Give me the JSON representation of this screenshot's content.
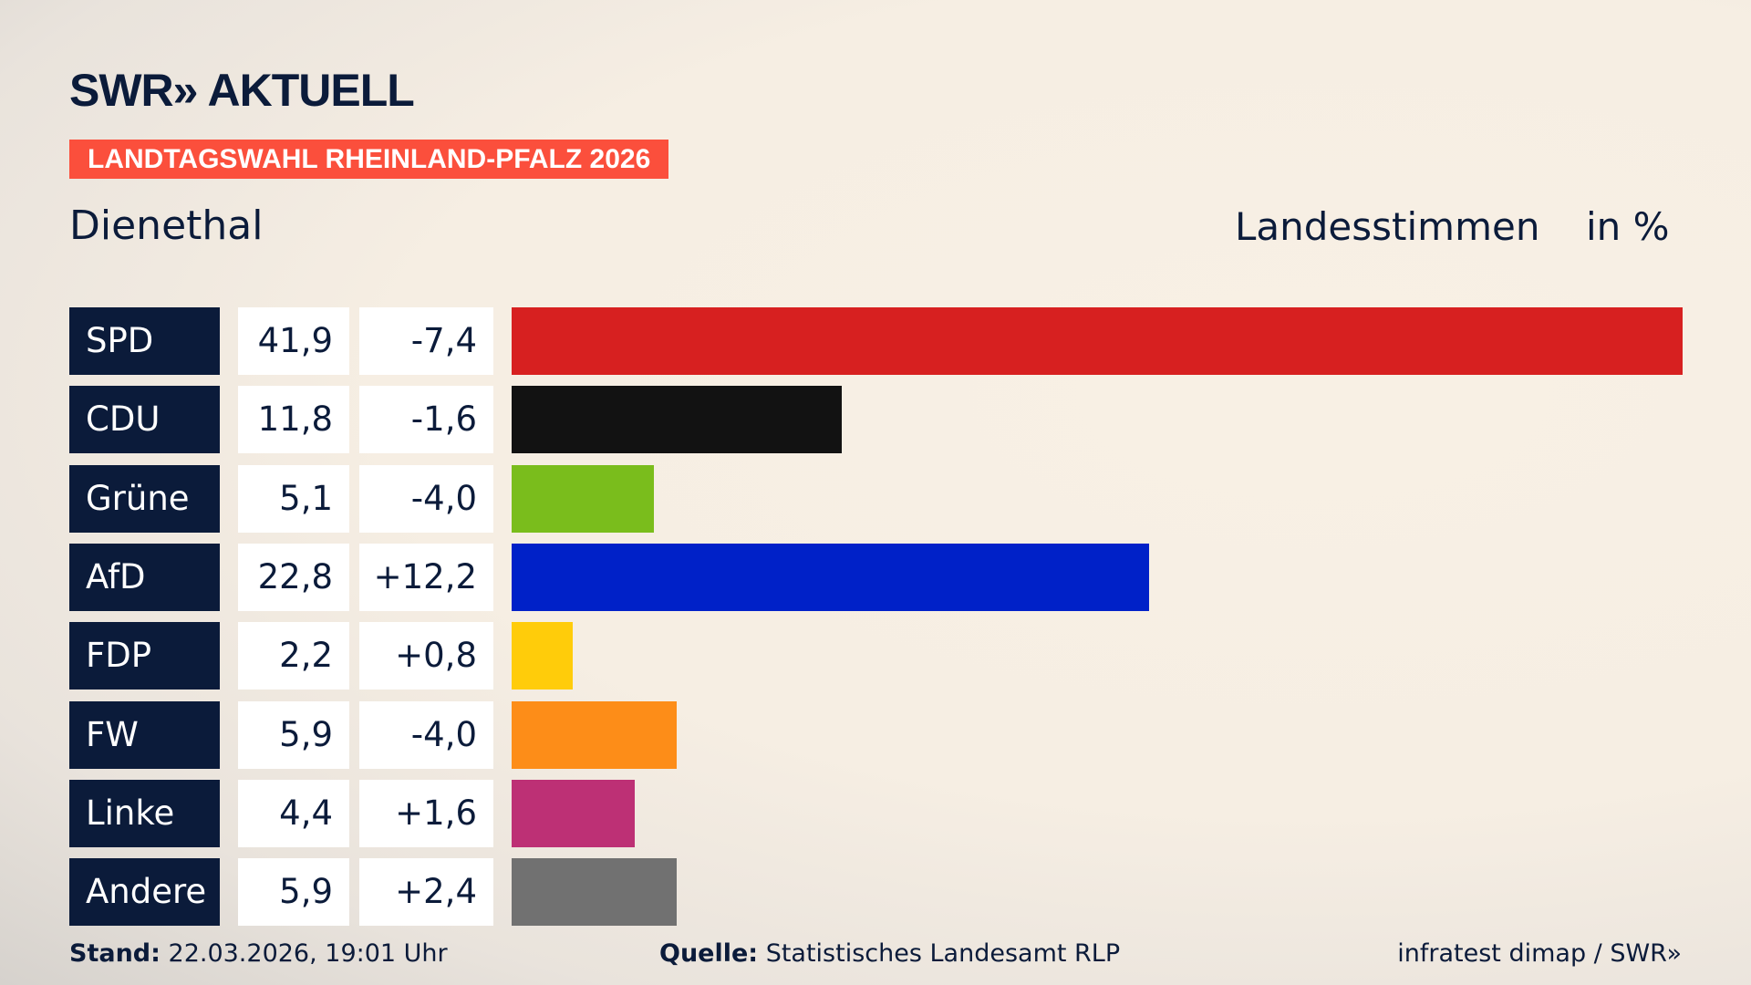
{
  "header": {
    "logo": "SWR» AKTUELL",
    "banner": "LANDTAGSWAHL RHEINLAND-PFALZ 2026",
    "place": "Dienethal",
    "metric": "Landesstimmen",
    "unit": "in %"
  },
  "chart_data": {
    "type": "bar",
    "orientation": "horizontal",
    "title": "Dienethal",
    "ylabel": "Landesstimmen in %",
    "categories": [
      "SPD",
      "CDU",
      "Grüne",
      "AfD",
      "FDP",
      "FW",
      "Linke",
      "Andere"
    ],
    "values": [
      41.9,
      11.8,
      5.1,
      22.8,
      2.2,
      5.9,
      4.4,
      5.9
    ],
    "labels": [
      "41,9",
      "11,8",
      "5,1",
      "22,8",
      "2,2",
      "5,9",
      "4,4",
      "5,9"
    ],
    "diffs": [
      "-7,4",
      "-1,6",
      "-4,0",
      "+12,2",
      "+0,8",
      "-4,0",
      "+1,6",
      "+2,4"
    ],
    "colors": [
      "#d72020",
      "#121212",
      "#7abd1c",
      "#0021c8",
      "#ffcc0a",
      "#fd8d18",
      "#bd3075",
      "#717171"
    ],
    "xlim": [
      0,
      41.9
    ]
  },
  "footer": {
    "stand_label": "Stand:",
    "stand": "22.03.2026, 19:01 Uhr",
    "source_label": "Quelle:",
    "source": "Statistisches Landesamt RLP",
    "credit": "infratest dimap / SWR»"
  }
}
